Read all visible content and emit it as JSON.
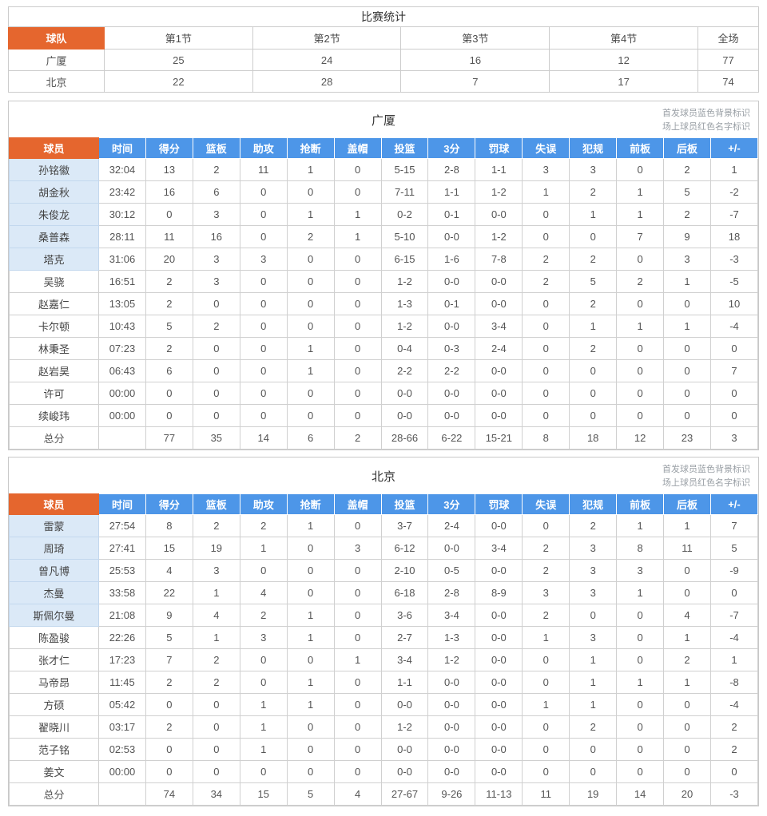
{
  "colors": {
    "accent_orange": "#e5662e",
    "header_blue": "#4d96e8",
    "starter_row_blue": "#dbe9f7",
    "grid_border": "#d0d0d0",
    "note_gray": "#9aa0a6"
  },
  "score_table": {
    "title": "比赛统计",
    "columns": [
      "球队",
      "第1节",
      "第2节",
      "第3节",
      "第4节",
      "全场"
    ],
    "rows": [
      {
        "team": "广厦",
        "values": [
          "25",
          "24",
          "16",
          "12",
          "77"
        ]
      },
      {
        "team": "北京",
        "values": [
          "22",
          "28",
          "7",
          "17",
          "74"
        ]
      }
    ]
  },
  "legend": [
    "首发球员蓝色背景标识",
    "场上球员红色名字标识"
  ],
  "stat_columns": [
    "球员",
    "时间",
    "得分",
    "篮板",
    "助攻",
    "抢断",
    "盖帽",
    "投篮",
    "3分",
    "罚球",
    "失误",
    "犯规",
    "前板",
    "后板",
    "+/-"
  ],
  "teams": [
    {
      "name": "广厦",
      "players": [
        {
          "name": "孙铭徽",
          "starter": true,
          "values": [
            "32:04",
            "13",
            "2",
            "11",
            "1",
            "0",
            "5-15",
            "2-8",
            "1-1",
            "3",
            "3",
            "0",
            "2",
            "1"
          ]
        },
        {
          "name": "胡金秋",
          "starter": true,
          "values": [
            "23:42",
            "16",
            "6",
            "0",
            "0",
            "0",
            "7-11",
            "1-1",
            "1-2",
            "1",
            "2",
            "1",
            "5",
            "-2"
          ]
        },
        {
          "name": "朱俊龙",
          "starter": true,
          "values": [
            "30:12",
            "0",
            "3",
            "0",
            "1",
            "1",
            "0-2",
            "0-1",
            "0-0",
            "0",
            "1",
            "1",
            "2",
            "-7"
          ]
        },
        {
          "name": "桑普森",
          "starter": true,
          "values": [
            "28:11",
            "11",
            "16",
            "0",
            "2",
            "1",
            "5-10",
            "0-0",
            "1-2",
            "0",
            "0",
            "7",
            "9",
            "18"
          ]
        },
        {
          "name": "塔克",
          "starter": true,
          "values": [
            "31:06",
            "20",
            "3",
            "3",
            "0",
            "0",
            "6-15",
            "1-6",
            "7-8",
            "2",
            "2",
            "0",
            "3",
            "-3"
          ]
        },
        {
          "name": "吴骁",
          "starter": false,
          "values": [
            "16:51",
            "2",
            "3",
            "0",
            "0",
            "0",
            "1-2",
            "0-0",
            "0-0",
            "2",
            "5",
            "2",
            "1",
            "-5"
          ]
        },
        {
          "name": "赵嘉仁",
          "starter": false,
          "values": [
            "13:05",
            "2",
            "0",
            "0",
            "0",
            "0",
            "1-3",
            "0-1",
            "0-0",
            "0",
            "2",
            "0",
            "0",
            "10"
          ]
        },
        {
          "name": "卡尔顿",
          "starter": false,
          "values": [
            "10:43",
            "5",
            "2",
            "0",
            "0",
            "0",
            "1-2",
            "0-0",
            "3-4",
            "0",
            "1",
            "1",
            "1",
            "-4"
          ]
        },
        {
          "name": "林秉圣",
          "starter": false,
          "values": [
            "07:23",
            "2",
            "0",
            "0",
            "1",
            "0",
            "0-4",
            "0-3",
            "2-4",
            "0",
            "2",
            "0",
            "0",
            "0"
          ]
        },
        {
          "name": "赵岩昊",
          "starter": false,
          "values": [
            "06:43",
            "6",
            "0",
            "0",
            "1",
            "0",
            "2-2",
            "2-2",
            "0-0",
            "0",
            "0",
            "0",
            "0",
            "7"
          ]
        },
        {
          "name": "许可",
          "starter": false,
          "values": [
            "00:00",
            "0",
            "0",
            "0",
            "0",
            "0",
            "0-0",
            "0-0",
            "0-0",
            "0",
            "0",
            "0",
            "0",
            "0"
          ]
        },
        {
          "name": "续峻玮",
          "starter": false,
          "values": [
            "00:00",
            "0",
            "0",
            "0",
            "0",
            "0",
            "0-0",
            "0-0",
            "0-0",
            "0",
            "0",
            "0",
            "0",
            "0"
          ]
        }
      ],
      "total": {
        "name": "总分",
        "values": [
          "",
          "77",
          "35",
          "14",
          "6",
          "2",
          "28-66",
          "6-22",
          "15-21",
          "8",
          "18",
          "12",
          "23",
          "3"
        ]
      }
    },
    {
      "name": "北京",
      "players": [
        {
          "name": "雷蒙",
          "starter": true,
          "values": [
            "27:54",
            "8",
            "2",
            "2",
            "1",
            "0",
            "3-7",
            "2-4",
            "0-0",
            "0",
            "2",
            "1",
            "1",
            "7"
          ]
        },
        {
          "name": "周琦",
          "starter": true,
          "values": [
            "27:41",
            "15",
            "19",
            "1",
            "0",
            "3",
            "6-12",
            "0-0",
            "3-4",
            "2",
            "3",
            "8",
            "11",
            "5"
          ]
        },
        {
          "name": "曾凡博",
          "starter": true,
          "values": [
            "25:53",
            "4",
            "3",
            "0",
            "0",
            "0",
            "2-10",
            "0-5",
            "0-0",
            "2",
            "3",
            "3",
            "0",
            "-9"
          ]
        },
        {
          "name": "杰曼",
          "starter": true,
          "values": [
            "33:58",
            "22",
            "1",
            "4",
            "0",
            "0",
            "6-18",
            "2-8",
            "8-9",
            "3",
            "3",
            "1",
            "0",
            "0"
          ]
        },
        {
          "name": "斯佩尔曼",
          "starter": true,
          "values": [
            "21:08",
            "9",
            "4",
            "2",
            "1",
            "0",
            "3-6",
            "3-4",
            "0-0",
            "2",
            "0",
            "0",
            "4",
            "-7"
          ]
        },
        {
          "name": "陈盈骏",
          "starter": false,
          "values": [
            "22:26",
            "5",
            "1",
            "3",
            "1",
            "0",
            "2-7",
            "1-3",
            "0-0",
            "1",
            "3",
            "0",
            "1",
            "-4"
          ]
        },
        {
          "name": "张才仁",
          "starter": false,
          "values": [
            "17:23",
            "7",
            "2",
            "0",
            "0",
            "1",
            "3-4",
            "1-2",
            "0-0",
            "0",
            "1",
            "0",
            "2",
            "1"
          ]
        },
        {
          "name": "马帝昂",
          "starter": false,
          "values": [
            "11:45",
            "2",
            "2",
            "0",
            "1",
            "0",
            "1-1",
            "0-0",
            "0-0",
            "0",
            "1",
            "1",
            "1",
            "-8"
          ]
        },
        {
          "name": "方硕",
          "starter": false,
          "values": [
            "05:42",
            "0",
            "0",
            "1",
            "1",
            "0",
            "0-0",
            "0-0",
            "0-0",
            "1",
            "1",
            "0",
            "0",
            "-4"
          ]
        },
        {
          "name": "翟晓川",
          "starter": false,
          "values": [
            "03:17",
            "2",
            "0",
            "1",
            "0",
            "0",
            "1-2",
            "0-0",
            "0-0",
            "0",
            "2",
            "0",
            "0",
            "2"
          ]
        },
        {
          "name": "范子铭",
          "starter": false,
          "values": [
            "02:53",
            "0",
            "0",
            "1",
            "0",
            "0",
            "0-0",
            "0-0",
            "0-0",
            "0",
            "0",
            "0",
            "0",
            "2"
          ]
        },
        {
          "name": "姜文",
          "starter": false,
          "values": [
            "00:00",
            "0",
            "0",
            "0",
            "0",
            "0",
            "0-0",
            "0-0",
            "0-0",
            "0",
            "0",
            "0",
            "0",
            "0"
          ]
        }
      ],
      "total": {
        "name": "总分",
        "values": [
          "",
          "74",
          "34",
          "15",
          "5",
          "4",
          "27-67",
          "9-26",
          "11-13",
          "11",
          "19",
          "14",
          "20",
          "-3"
        ]
      }
    }
  ]
}
